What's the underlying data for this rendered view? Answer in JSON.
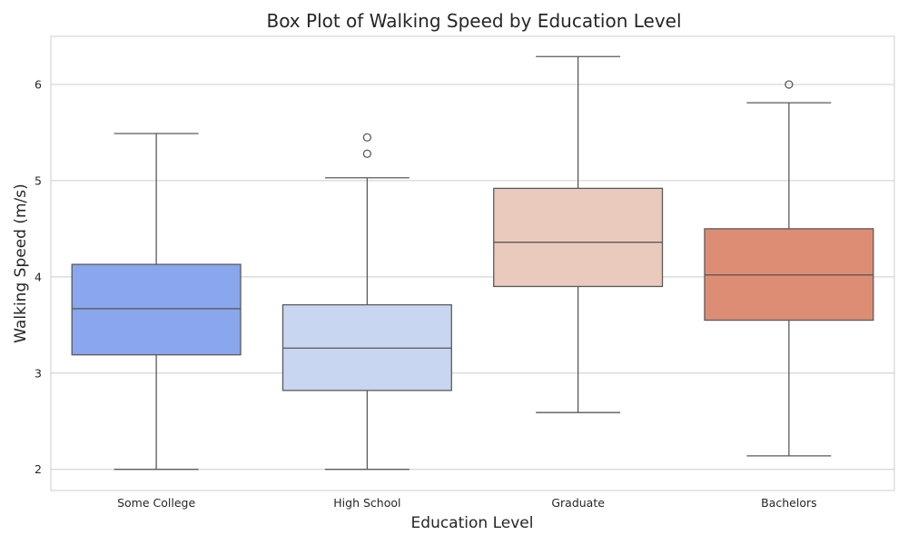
{
  "chart_data": {
    "type": "box",
    "title": "Box Plot of Walking Speed by Education Level",
    "xlabel": "Education Level",
    "ylabel": "Walking Speed (m/s)",
    "ylim": [
      1.78,
      6.5
    ],
    "yticks": [
      2,
      3,
      4,
      5,
      6
    ],
    "grid": true,
    "categories": [
      "Some College",
      "High School",
      "Graduate",
      "Bachelors"
    ],
    "colors": [
      "#8aa6ec",
      "#c8d6f1",
      "#eacabd",
      "#de8d75"
    ],
    "boxes": [
      {
        "category": "Some College",
        "whisker_low": 2.0,
        "q1": 3.19,
        "median": 3.67,
        "q3": 4.13,
        "whisker_high": 5.49,
        "outliers": []
      },
      {
        "category": "High School",
        "whisker_low": 2.0,
        "q1": 2.82,
        "median": 3.26,
        "q3": 3.71,
        "whisker_high": 5.03,
        "outliers": [
          5.28,
          5.45
        ]
      },
      {
        "category": "Graduate",
        "whisker_low": 2.59,
        "q1": 3.9,
        "median": 4.36,
        "q3": 4.92,
        "whisker_high": 6.29,
        "outliers": []
      },
      {
        "category": "Bachelors",
        "whisker_low": 2.14,
        "q1": 3.55,
        "median": 4.02,
        "q3": 4.5,
        "whisker_high": 5.81,
        "outliers": [
          6.0
        ]
      }
    ]
  }
}
